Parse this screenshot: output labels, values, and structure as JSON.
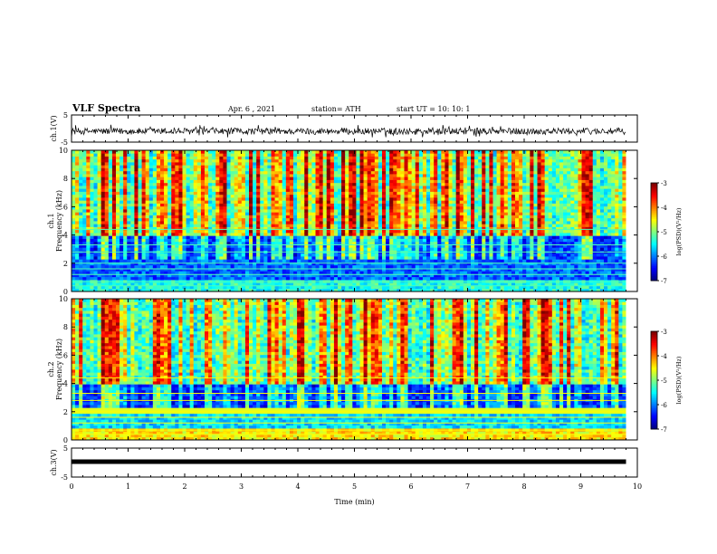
{
  "header": {
    "title": "VLF Spectra",
    "date": "Apr. 6 , 2021",
    "station": "station= ATH",
    "start": "start UT = 10: 10: 1"
  },
  "chart_data": [
    {
      "type": "line",
      "panel": "ch1-waveform",
      "ylabel": "ch.1(V)",
      "ylim": [
        -5,
        5
      ],
      "yticks": [
        "5",
        "-5"
      ],
      "series": [
        {
          "summary": "noisy waveform centred near -1 V, typical range -3 to +0.5 V",
          "baseline": -1,
          "amplitude": 1.5
        }
      ]
    },
    {
      "type": "heatmap",
      "panel": "ch1-spectrogram",
      "ylabel": [
        "ch.1",
        "Frequency (kHz)"
      ],
      "ylim": [
        0,
        10
      ],
      "yticks": [
        "0",
        "2",
        "4",
        "6",
        "8",
        "10"
      ],
      "colorbar": {
        "label": "log(PSD)(V²/Hz)",
        "range": [
          -7,
          -3
        ],
        "ticks": [
          "-3",
          "-4",
          "-5",
          "-6",
          "-7"
        ]
      },
      "description": "bursty broadband emission; high power above 4 kHz in vertical streaks, lower power 2-4 kHz, narrow lines below 2 kHz"
    },
    {
      "type": "heatmap",
      "panel": "ch2-spectrogram",
      "ylabel": [
        "ch.2",
        "Frequency (kHz)"
      ],
      "ylim": [
        0,
        10
      ],
      "yticks": [
        "0",
        "2",
        "4",
        "6",
        "8",
        "10"
      ],
      "colorbar": {
        "label": "log(PSD)(V²/Hz)",
        "range": [
          -7,
          -3
        ],
        "ticks": [
          "-3",
          "-4",
          "-5",
          "-6",
          "-7"
        ]
      },
      "description": "similar structure with stronger horizontal bands near 2 kHz and below 1 kHz"
    },
    {
      "type": "line",
      "panel": "ch3-waveform",
      "ylabel": "ch.3(V)",
      "ylim": [
        -5,
        5
      ],
      "yticks": [
        "5",
        "-5"
      ],
      "series": [
        {
          "summary": "constant signal near 0 V",
          "baseline": 0.3
        }
      ]
    }
  ],
  "xaxis": {
    "label": "Time (min)",
    "range": [
      0,
      10
    ],
    "ticks": [
      "0",
      "1",
      "2",
      "3",
      "4",
      "5",
      "6",
      "7",
      "8",
      "9",
      "10"
    ],
    "data_end": 9.8
  },
  "colors": {
    "background": "#ffffff",
    "axis": "#000000"
  }
}
